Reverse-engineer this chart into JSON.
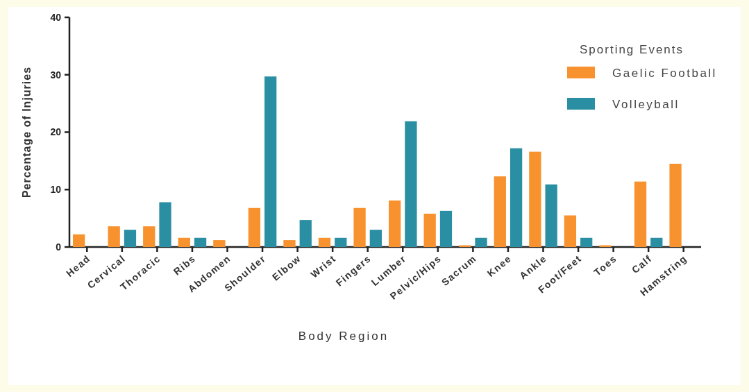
{
  "chart_data": {
    "type": "bar",
    "xlabel": "Body Region",
    "ylabel": "Percentage of Injuries",
    "legend_title": "Sporting Events",
    "legend": "top right",
    "categories": [
      "Head",
      "Cervical",
      "Thoracic",
      "Ribs",
      "Abdomen",
      "Shoulder",
      "Elbow",
      "Wrist",
      "Fingers",
      "Lumber",
      "Pelvic/Hips",
      "Sacrum",
      "Knee",
      "Ankle",
      "Foot/Feet",
      "Toes",
      "Calf",
      "Hamstring"
    ],
    "series": [
      {
        "name": "Gaelic Football",
        "color": "#f7922e",
        "values": [
          2.2,
          3.6,
          3.6,
          1.6,
          1.2,
          6.8,
          1.2,
          1.6,
          6.8,
          8.1,
          5.8,
          0.3,
          12.3,
          16.6,
          5.5,
          0.3,
          11.4,
          14.5
        ]
      },
      {
        "name": "Volleyball",
        "color": "#2a8fa3",
        "values": [
          0,
          3.0,
          7.8,
          1.6,
          0,
          29.7,
          4.7,
          1.6,
          3.0,
          21.9,
          6.3,
          1.6,
          17.2,
          10.9,
          1.6,
          0,
          1.6,
          0
        ]
      }
    ],
    "ylim": [
      0,
      40
    ],
    "yticks": [
      0,
      10,
      20,
      30,
      40
    ],
    "grid": false
  }
}
